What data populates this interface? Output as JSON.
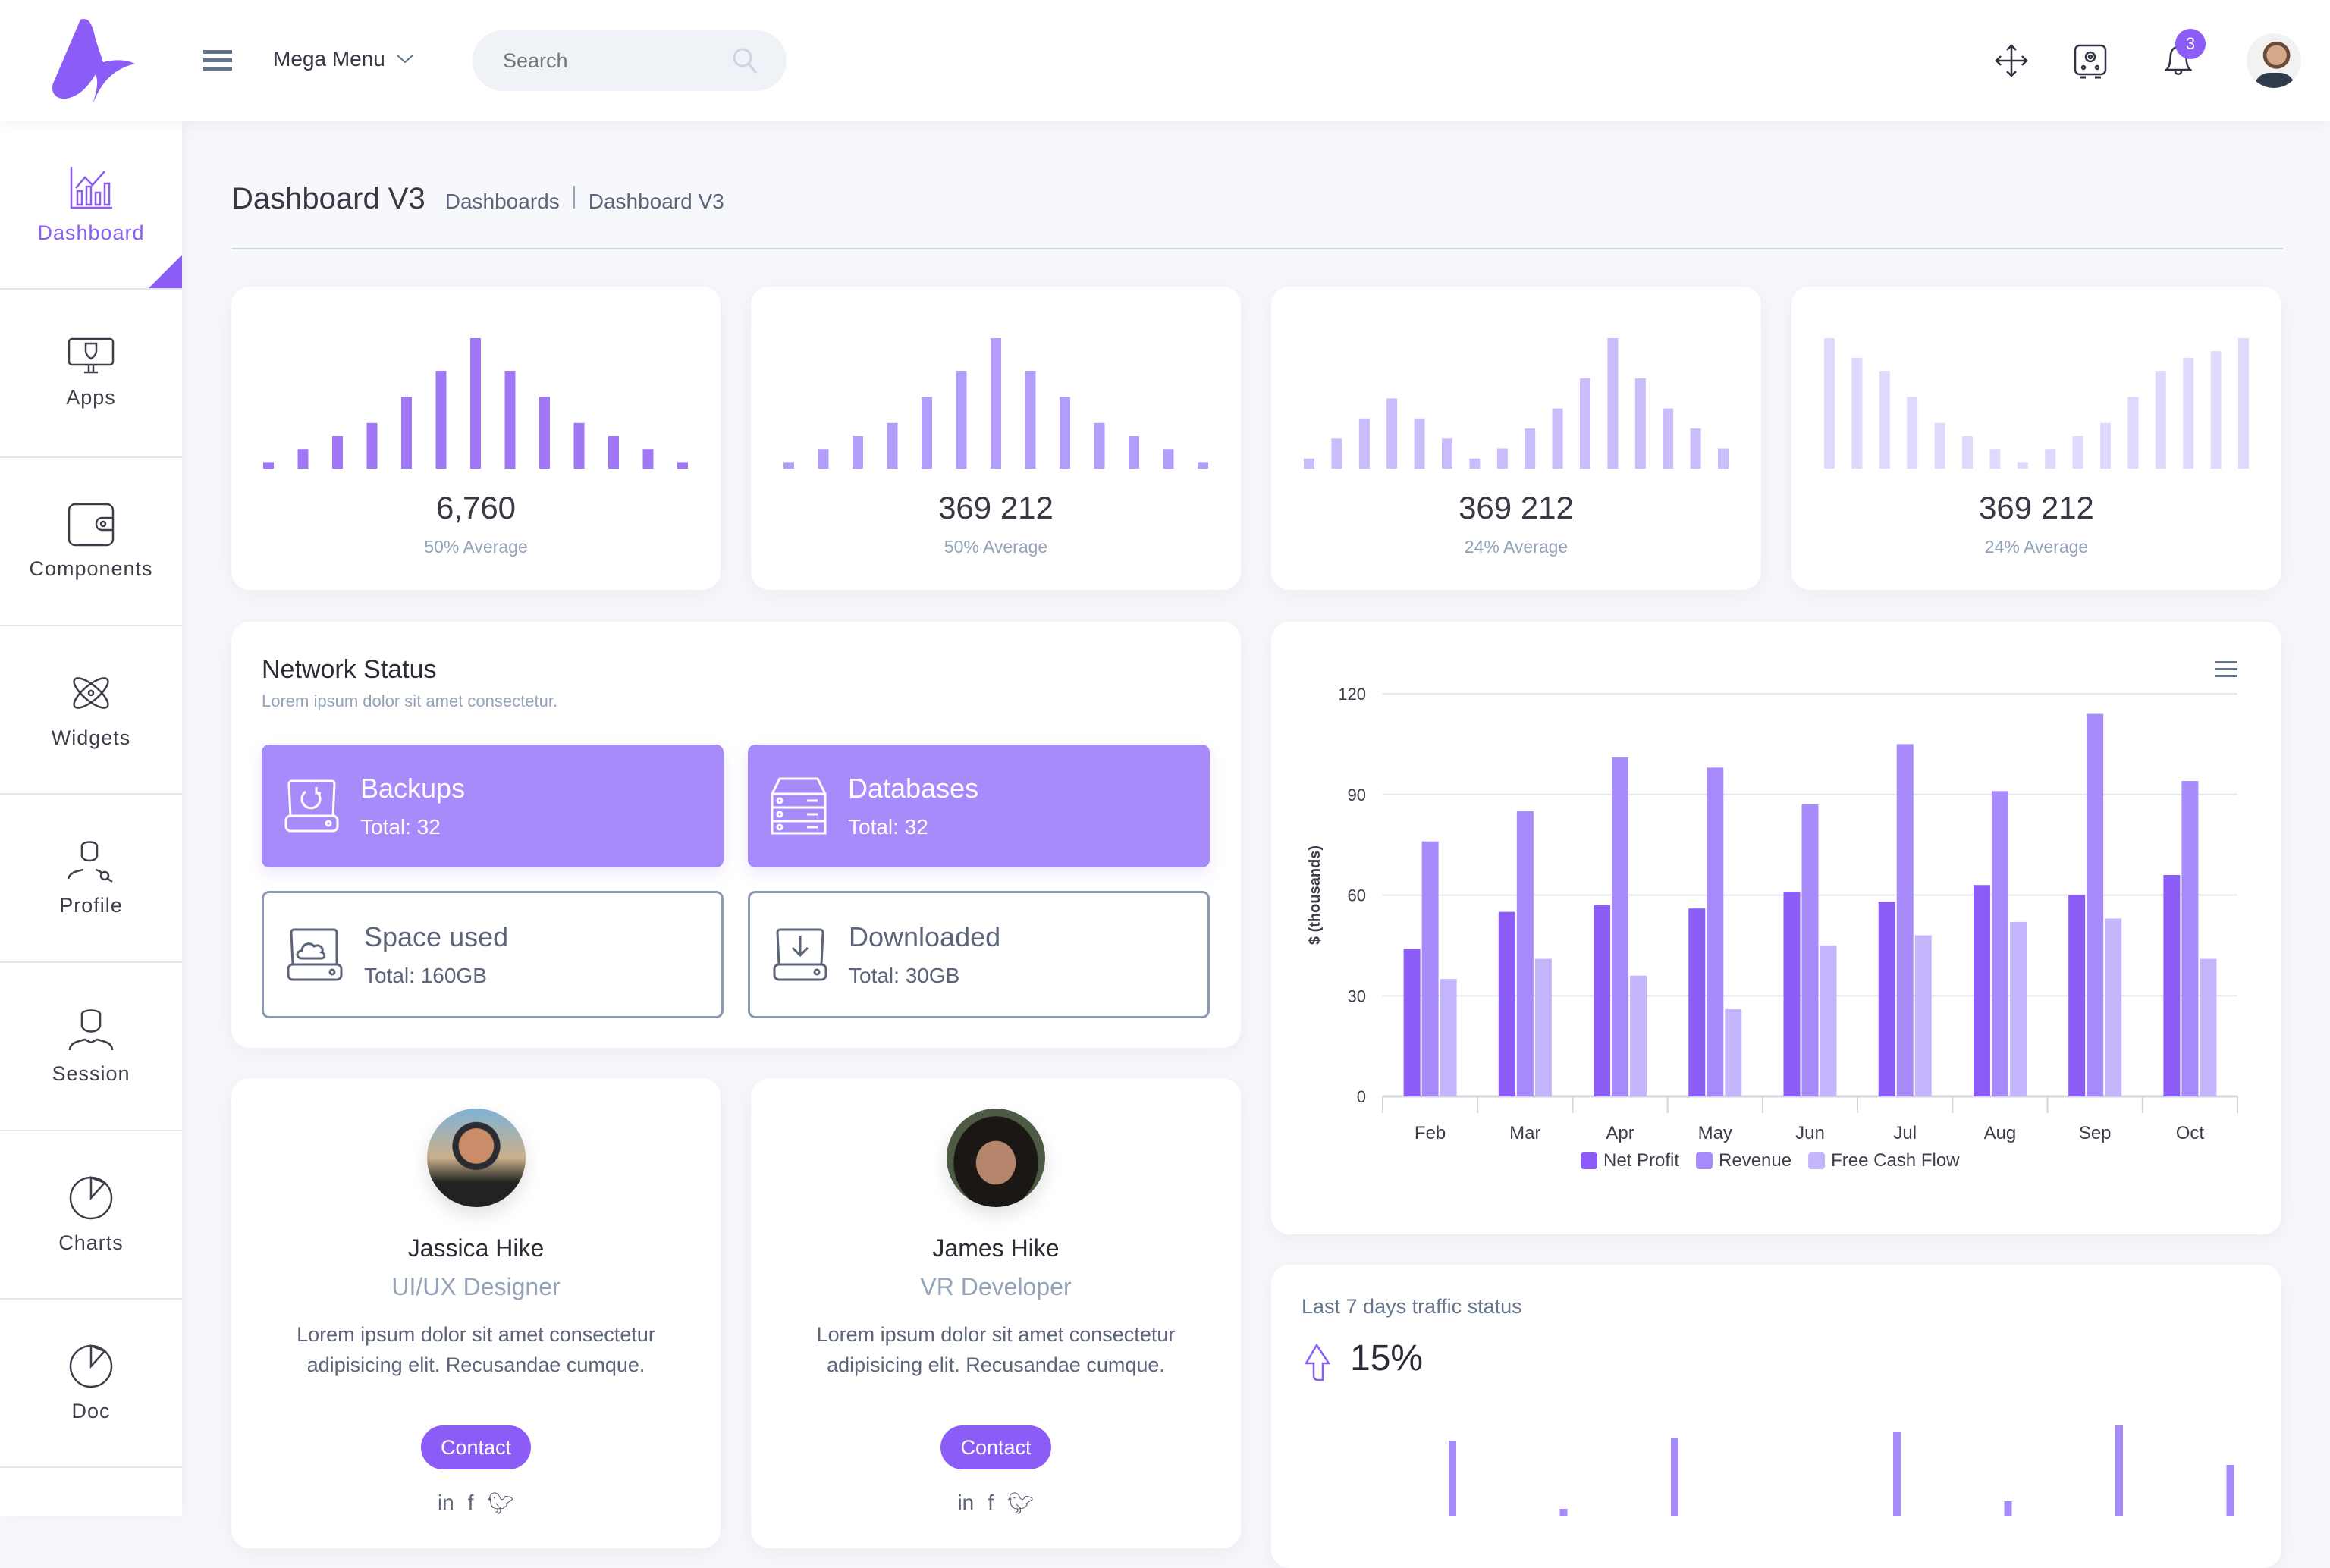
{
  "header": {
    "menu_label": "Mega Menu",
    "search_placeholder": "Search",
    "notifications_count": "3"
  },
  "sidebar": {
    "items": [
      {
        "label": "Dashboard",
        "icon": "chart-icon",
        "active": true
      },
      {
        "label": "Apps",
        "icon": "monitor-shield-icon"
      },
      {
        "label": "Components",
        "icon": "wallet-icon"
      },
      {
        "label": "Widgets",
        "icon": "atom-icon"
      },
      {
        "label": "Profile",
        "icon": "user-search-icon"
      },
      {
        "label": "Session",
        "icon": "user-icon"
      },
      {
        "label": "Charts",
        "icon": "pie-chart-icon"
      },
      {
        "label": "Doc",
        "icon": "pie-chart-icon"
      }
    ]
  },
  "page": {
    "title": "Dashboard V3",
    "breadcrumb": [
      "Dashboards",
      "Dashboard V3"
    ]
  },
  "stats": [
    {
      "value": "6,760",
      "sub": "50% Average",
      "color": "#a078f7",
      "bars": [
        1,
        3,
        5,
        7,
        11,
        15,
        20,
        15,
        11,
        7,
        5,
        3,
        1
      ]
    },
    {
      "value": "369 212",
      "sub": "50% Average",
      "color": "#b39dfa",
      "bars": [
        1,
        3,
        5,
        7,
        11,
        15,
        20,
        15,
        11,
        7,
        5,
        3,
        1
      ]
    },
    {
      "value": "369 212",
      "sub": "24% Average",
      "color": "#cbbcfc",
      "bars": [
        1,
        3,
        5,
        7,
        5,
        3,
        1,
        2,
        4,
        6,
        9,
        13,
        9,
        6,
        4,
        2
      ]
    },
    {
      "value": "369 212",
      "sub": "24% Average",
      "color": "#e0d9fd",
      "bars": [
        20,
        17,
        15,
        11,
        7,
        5,
        3,
        1,
        3,
        5,
        7,
        11,
        15,
        17,
        18,
        20
      ]
    }
  ],
  "network": {
    "title": "Network Status",
    "subtitle": "Lorem ipsum dolor sit amet consectetur.",
    "tiles": [
      {
        "title": "Backups",
        "total": "Total: 32"
      },
      {
        "title": "Databases",
        "total": "Total: 32"
      },
      {
        "title": "Space used",
        "total": "Total: 160GB"
      },
      {
        "title": "Downloaded",
        "total": "Total: 30GB"
      }
    ]
  },
  "profiles": [
    {
      "name": "Jassica Hike",
      "role": "UI/UX Designer",
      "desc1": "Lorem ipsum dolor sit amet consectetur",
      "desc2": "adipisicing elit. Recusandae cumque.",
      "button": "Contact"
    },
    {
      "name": "James Hike",
      "role": "VR Developer",
      "desc1": "Lorem ipsum dolor sit amet consectetur",
      "desc2": "adipisicing elit. Recusandae cumque.",
      "button": "Contact"
    }
  ],
  "traffic": {
    "title": "Last 7 days traffic status",
    "value": "15%",
    "bars": [
      50,
      5,
      52,
      0,
      56,
      10,
      60,
      34
    ]
  },
  "chart_data": {
    "type": "bar",
    "title": "",
    "xlabel": "",
    "ylabel": "$ (thousands)",
    "ylim": [
      0,
      120
    ],
    "yticks": [
      0,
      30,
      60,
      90,
      120
    ],
    "grid": true,
    "legend": "bottom",
    "categories": [
      "Feb",
      "Mar",
      "Apr",
      "May",
      "Jun",
      "Jul",
      "Aug",
      "Sep",
      "Oct"
    ],
    "series": [
      {
        "name": "Net Profit",
        "color": "#8b5cf6",
        "values": [
          44,
          55,
          57,
          56,
          61,
          58,
          63,
          60,
          66
        ]
      },
      {
        "name": "Revenue",
        "color": "#a78bfa",
        "values": [
          76,
          85,
          101,
          98,
          87,
          105,
          91,
          114,
          94
        ]
      },
      {
        "name": "Free Cash Flow",
        "color": "#c4b5fd",
        "values": [
          35,
          41,
          36,
          26,
          45,
          48,
          52,
          53,
          41
        ]
      }
    ]
  }
}
